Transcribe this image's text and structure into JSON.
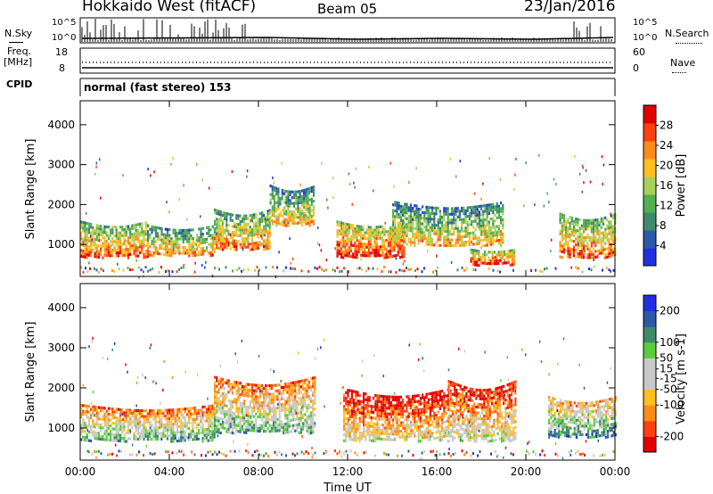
{
  "header": {
    "station": "Hokkaido West (fitACF)",
    "beam": "Beam 05",
    "date": "23/Jan/2016"
  },
  "top_panels": {
    "nsky_label": "N.Sky",
    "nsearch_label": "N.Search",
    "nsky_ticks": [
      "10^5",
      "10^0"
    ],
    "nsearch_ticks": [
      "10^5",
      "10^0"
    ],
    "freq_label": "Freq.",
    "freq_unit": "[MHz]",
    "freq_ticks": [
      "18",
      "8"
    ],
    "nave_label": "Nave",
    "nave_ticks": [
      "60",
      "0"
    ],
    "cpid_label": "CPID",
    "cpid_text": "normal (fast stereo) 153"
  },
  "colors": {
    "power_scale": [
      "#2030e0",
      "#2a5aa8",
      "#3f8a6c",
      "#54b04e",
      "#a6d05a",
      "#ffc020",
      "#ff8c1a",
      "#ff4010",
      "#e00000"
    ],
    "velocity_scale": [
      "#e00000",
      "#ff4010",
      "#ff8c1a",
      "#ffc020",
      "#c8c8c8",
      "#c8c8c8",
      "#5acc3c",
      "#3f8a6c",
      "#2a5aa8",
      "#2030e0"
    ]
  },
  "chart_data": [
    {
      "type": "heatmap",
      "name": "power",
      "ylabel": "Slant Range [km]",
      "ylim": [
        200,
        4600
      ],
      "yticks": [
        "1000",
        "2000",
        "3000",
        "4000"
      ],
      "xlim": [
        0,
        24
      ],
      "xticks": [
        "00:00",
        "04:00",
        "08:00",
        "12:00",
        "16:00",
        "20:00",
        "00:00"
      ],
      "colorbar_label": "Power [dB]",
      "colorbar_ticks": [
        "4",
        "8",
        "12",
        "16",
        "20",
        "24",
        "28"
      ],
      "colorbar_range": [
        0,
        32
      ],
      "regions": [
        {
          "t0": 0.0,
          "t1": 3.0,
          "r0": 700,
          "r1": 1600,
          "level": 0.6
        },
        {
          "t0": 3.0,
          "t1": 6.0,
          "r0": 750,
          "r1": 1500,
          "level": 0.5
        },
        {
          "t0": 6.0,
          "t1": 8.5,
          "r0": 900,
          "r1": 1900,
          "level": 0.55
        },
        {
          "t0": 8.5,
          "t1": 10.5,
          "r0": 1500,
          "r1": 2500,
          "level": 0.45
        },
        {
          "t0": 11.5,
          "t1": 14.5,
          "r0": 700,
          "r1": 1600,
          "level": 0.7
        },
        {
          "t0": 14.0,
          "t1": 19.0,
          "r0": 1000,
          "r1": 2100,
          "level": 0.45
        },
        {
          "t0": 17.5,
          "t1": 19.5,
          "r0": 500,
          "r1": 900,
          "level": 0.7
        },
        {
          "t0": 21.5,
          "t1": 24.0,
          "r0": 700,
          "r1": 1800,
          "level": 0.6
        }
      ]
    },
    {
      "type": "heatmap",
      "name": "velocity",
      "ylabel": "Slant Range [km]",
      "ylim": [
        200,
        4600
      ],
      "yticks": [
        "1000",
        "2000",
        "3000",
        "4000"
      ],
      "xlim": [
        0,
        24
      ],
      "xticks": [
        "00:00",
        "04:00",
        "08:00",
        "12:00",
        "16:00",
        "20:00",
        "00:00"
      ],
      "xlabel": "Time UT",
      "colorbar_label": "Velocity [m s-1]",
      "colorbar_ticks": [
        "-200",
        "-100",
        "-50",
        "-15",
        "15",
        "50",
        "100",
        "200"
      ],
      "colorbar_range": [
        -250,
        250
      ],
      "regions": [
        {
          "t0": 0.0,
          "t1": 6.0,
          "r0": 700,
          "r1": 1600,
          "level": 0.45
        },
        {
          "t0": 6.0,
          "t1": 10.5,
          "r0": 900,
          "r1": 2300,
          "level": 0.45
        },
        {
          "t0": 11.8,
          "t1": 16.5,
          "r0": 700,
          "r1": 2000,
          "level": 0.25
        },
        {
          "t0": 16.5,
          "t1": 19.5,
          "r0": 700,
          "r1": 2200,
          "level": 0.3
        },
        {
          "t0": 21.0,
          "t1": 24.0,
          "r0": 800,
          "r1": 1800,
          "level": 0.55
        }
      ]
    }
  ]
}
